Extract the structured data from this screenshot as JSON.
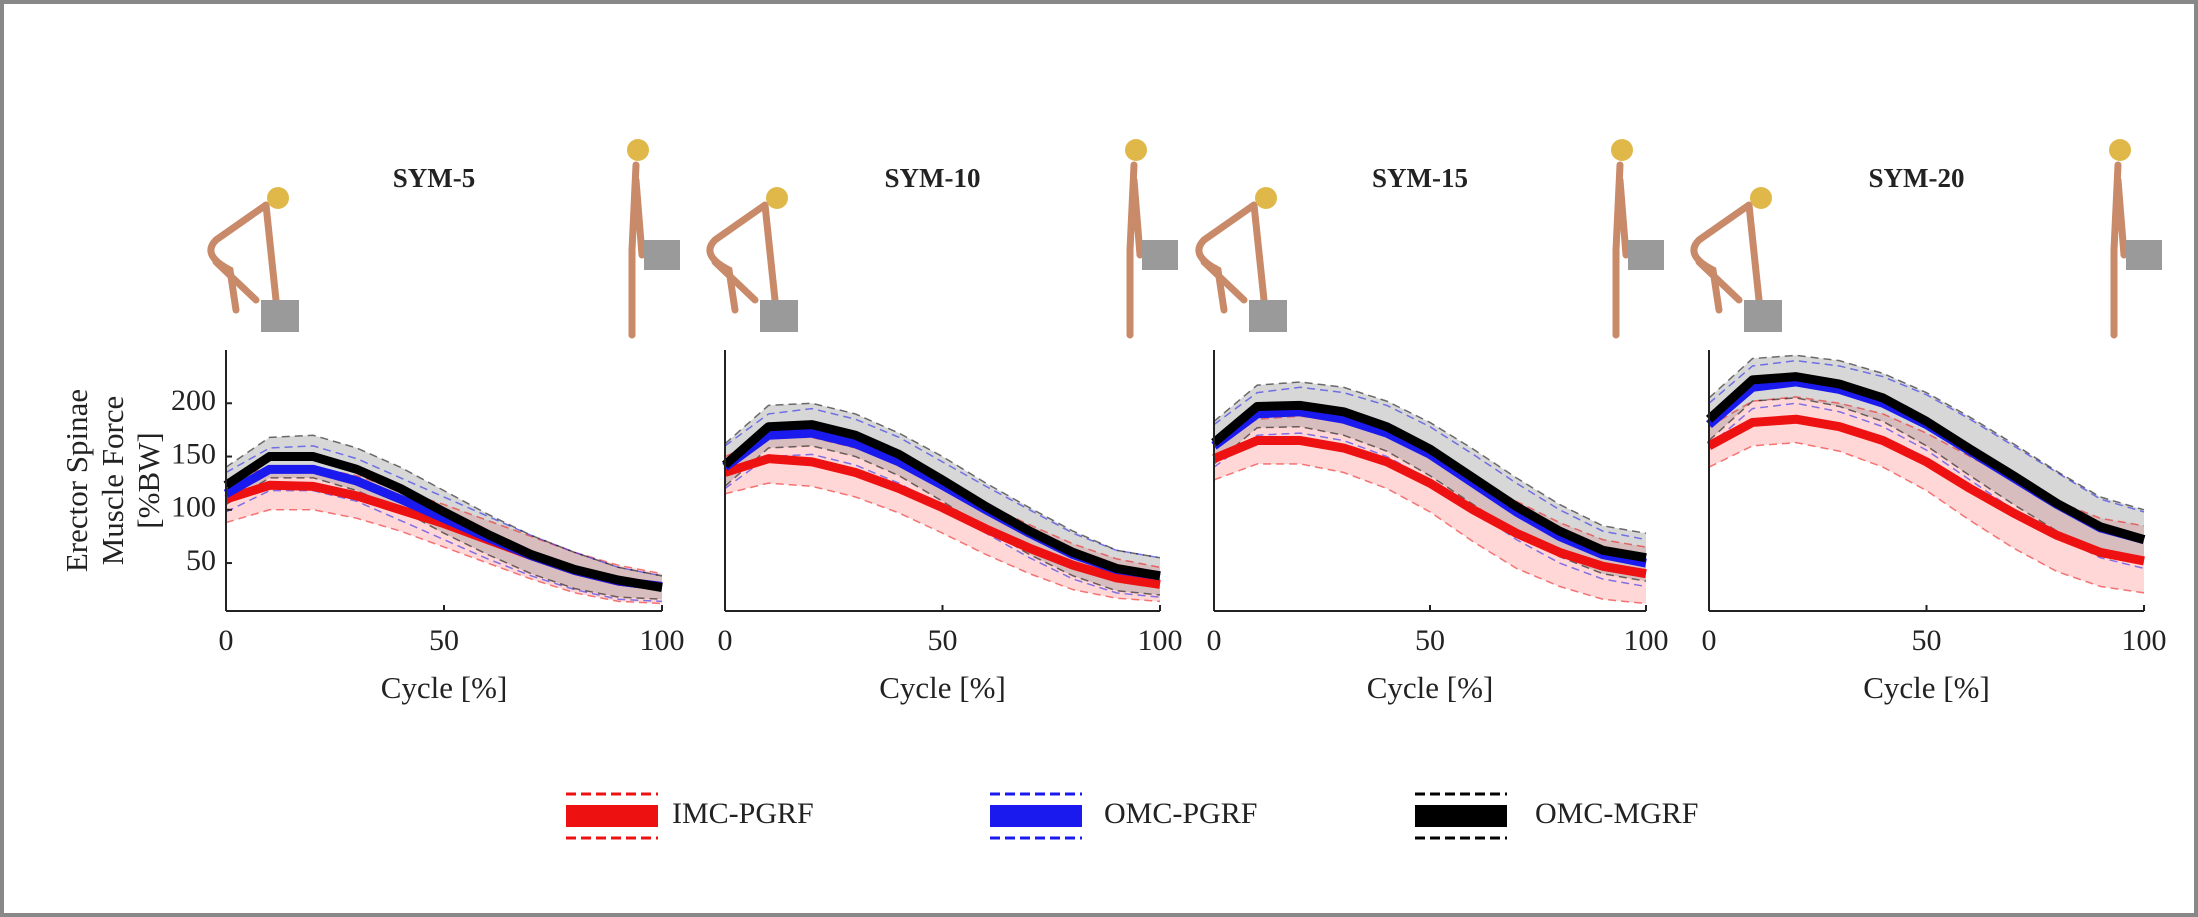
{
  "chart_data": [
    {
      "type": "line",
      "title": "SYM-5",
      "xlabel": "Cycle [%]",
      "ylabel": [
        "Erector Spinae",
        "Muscle Force",
        "[%BW]"
      ],
      "x": [
        0,
        10,
        20,
        30,
        40,
        50,
        60,
        70,
        80,
        90,
        100
      ],
      "xlim": [
        0,
        100
      ],
      "xticks": [
        0,
        50,
        100
      ],
      "ylim": [
        5,
        250
      ],
      "yticks": [
        50,
        100,
        150,
        200
      ],
      "series": [
        {
          "name": "IMC-PGRF",
          "color": "#ee1111",
          "values": [
            110,
            123,
            122,
            113,
            100,
            87,
            72,
            57,
            43,
            33,
            28
          ],
          "lower": [
            88,
            100,
            100,
            92,
            80,
            65,
            50,
            35,
            22,
            14,
            12
          ],
          "upper": [
            128,
            140,
            140,
            132,
            118,
            105,
            90,
            75,
            60,
            48,
            40
          ]
        },
        {
          "name": "OMC-PGRF",
          "color": "#1a1aee",
          "values": [
            115,
            138,
            138,
            127,
            110,
            92,
            74,
            57,
            43,
            33,
            28
          ],
          "lower": [
            98,
            118,
            118,
            108,
            90,
            72,
            54,
            38,
            25,
            16,
            14
          ],
          "upper": [
            135,
            158,
            160,
            148,
            130,
            112,
            94,
            76,
            60,
            46,
            38
          ]
        },
        {
          "name": "OMC-MGRF",
          "color": "#000000",
          "values": [
            123,
            150,
            150,
            138,
            120,
            98,
            77,
            58,
            44,
            34,
            27
          ],
          "lower": [
            105,
            130,
            130,
            118,
            100,
            78,
            58,
            40,
            26,
            18,
            16
          ],
          "upper": [
            140,
            168,
            170,
            158,
            140,
            118,
            96,
            76,
            60,
            46,
            38
          ]
        }
      ]
    },
    {
      "type": "line",
      "title": "SYM-10",
      "xlabel": "Cycle [%]",
      "x": [
        0,
        10,
        20,
        30,
        40,
        50,
        60,
        70,
        80,
        90,
        100
      ],
      "xlim": [
        0,
        100
      ],
      "xticks": [
        0,
        50,
        100
      ],
      "ylim": [
        5,
        250
      ],
      "series": [
        {
          "name": "IMC-PGRF",
          "color": "#ee1111",
          "values": [
            135,
            148,
            145,
            135,
            120,
            102,
            82,
            64,
            48,
            36,
            30
          ],
          "lower": [
            115,
            125,
            122,
            112,
            97,
            78,
            58,
            40,
            25,
            17,
            14
          ],
          "upper": [
            150,
            168,
            168,
            158,
            143,
            125,
            105,
            86,
            68,
            54,
            46
          ]
        },
        {
          "name": "OMC-PGRF",
          "color": "#1a1aee",
          "values": [
            140,
            170,
            172,
            162,
            145,
            123,
            100,
            78,
            58,
            44,
            38
          ],
          "lower": [
            120,
            150,
            152,
            142,
            125,
            102,
            78,
            55,
            35,
            22,
            18
          ],
          "upper": [
            160,
            190,
            195,
            185,
            168,
            145,
            122,
            100,
            78,
            62,
            55
          ]
        },
        {
          "name": "OMC-MGRF",
          "color": "#000000",
          "values": [
            142,
            178,
            180,
            170,
            152,
            128,
            103,
            80,
            60,
            45,
            38
          ],
          "lower": [
            122,
            158,
            160,
            150,
            132,
            108,
            82,
            58,
            38,
            24,
            20
          ],
          "upper": [
            162,
            198,
            200,
            190,
            172,
            150,
            125,
            102,
            80,
            62,
            55
          ]
        }
      ]
    },
    {
      "type": "line",
      "title": "SYM-15",
      "xlabel": "Cycle [%]",
      "x": [
        0,
        10,
        20,
        30,
        40,
        50,
        60,
        70,
        80,
        90,
        100
      ],
      "xlim": [
        0,
        100
      ],
      "xticks": [
        0,
        50,
        100
      ],
      "ylim": [
        5,
        250
      ],
      "series": [
        {
          "name": "IMC-PGRF",
          "color": "#ee1111",
          "values": [
            148,
            165,
            165,
            158,
            145,
            125,
            100,
            78,
            60,
            47,
            40
          ],
          "lower": [
            128,
            143,
            143,
            135,
            120,
            98,
            70,
            45,
            28,
            16,
            12
          ],
          "upper": [
            165,
            185,
            188,
            182,
            170,
            152,
            130,
            108,
            88,
            72,
            65
          ]
        },
        {
          "name": "OMC-PGRF",
          "color": "#1a1aee",
          "values": [
            160,
            190,
            192,
            185,
            172,
            152,
            125,
            98,
            75,
            58,
            50
          ],
          "lower": [
            140,
            170,
            172,
            165,
            150,
            128,
            100,
            72,
            50,
            35,
            28
          ],
          "upper": [
            180,
            210,
            215,
            210,
            198,
            178,
            152,
            125,
            100,
            80,
            72
          ]
        },
        {
          "name": "OMC-MGRF",
          "color": "#000000",
          "values": [
            163,
            197,
            198,
            192,
            178,
            157,
            130,
            103,
            80,
            62,
            55
          ],
          "lower": [
            143,
            177,
            178,
            170,
            155,
            132,
            105,
            78,
            56,
            40,
            33
          ],
          "upper": [
            183,
            217,
            220,
            215,
            202,
            182,
            157,
            130,
            105,
            85,
            78
          ]
        }
      ]
    },
    {
      "type": "line",
      "title": "SYM-20",
      "xlabel": "Cycle [%]",
      "x": [
        0,
        10,
        20,
        30,
        40,
        50,
        60,
        70,
        80,
        90,
        100
      ],
      "xlim": [
        0,
        100
      ],
      "xticks": [
        0,
        50,
        100
      ],
      "ylim": [
        5,
        250
      ],
      "series": [
        {
          "name": "IMC-PGRF",
          "color": "#ee1111",
          "values": [
            160,
            182,
            185,
            178,
            165,
            145,
            120,
            97,
            76,
            60,
            52
          ],
          "lower": [
            140,
            160,
            163,
            155,
            140,
            118,
            90,
            64,
            42,
            28,
            22
          ],
          "upper": [
            178,
            202,
            206,
            200,
            190,
            172,
            150,
            128,
            108,
            92,
            85
          ]
        },
        {
          "name": "OMC-PGRF",
          "color": "#1a1aee",
          "values": [
            180,
            215,
            220,
            213,
            200,
            180,
            155,
            130,
            105,
            83,
            72
          ],
          "lower": [
            160,
            195,
            200,
            192,
            178,
            156,
            128,
            100,
            75,
            55,
            45
          ],
          "upper": [
            200,
            235,
            240,
            235,
            225,
            208,
            185,
            160,
            135,
            110,
            98
          ]
        },
        {
          "name": "OMC-MGRF",
          "color": "#000000",
          "values": [
            185,
            222,
            225,
            218,
            205,
            183,
            157,
            132,
            106,
            84,
            72
          ],
          "lower": [
            165,
            202,
            205,
            197,
            183,
            160,
            132,
            105,
            80,
            60,
            50
          ],
          "upper": [
            205,
            242,
            245,
            240,
            228,
            210,
            187,
            162,
            136,
            112,
            100
          ]
        }
      ]
    }
  ]
}
